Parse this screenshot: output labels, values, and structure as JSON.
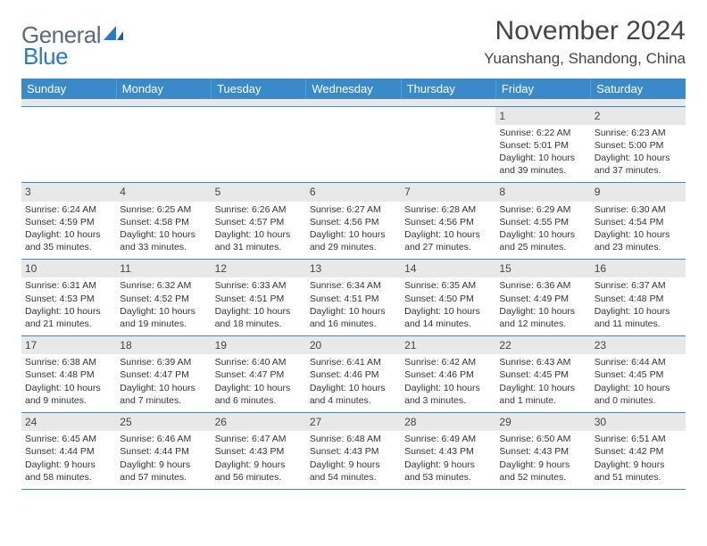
{
  "logo": {
    "text1": "General",
    "text2": "Blue"
  },
  "title": "November 2024",
  "location": "Yuanshang, Shandong, China",
  "day_headers": [
    "Sunday",
    "Monday",
    "Tuesday",
    "Wednesday",
    "Thursday",
    "Friday",
    "Saturday"
  ],
  "colors": {
    "header_bg": "#3a89c9",
    "header_text": "#ffffff",
    "logo_gray": "#5a6a78",
    "logo_blue": "#2a7bbf",
    "grid_line": "#3a89c9",
    "shade": "#e8e8e8"
  },
  "weeks": [
    [
      {
        "n": "",
        "sr": "",
        "ss": "",
        "d1": "",
        "d2": ""
      },
      {
        "n": "",
        "sr": "",
        "ss": "",
        "d1": "",
        "d2": ""
      },
      {
        "n": "",
        "sr": "",
        "ss": "",
        "d1": "",
        "d2": ""
      },
      {
        "n": "",
        "sr": "",
        "ss": "",
        "d1": "",
        "d2": ""
      },
      {
        "n": "",
        "sr": "",
        "ss": "",
        "d1": "",
        "d2": ""
      },
      {
        "n": "1",
        "sr": "Sunrise: 6:22 AM",
        "ss": "Sunset: 5:01 PM",
        "d1": "Daylight: 10 hours",
        "d2": "and 39 minutes."
      },
      {
        "n": "2",
        "sr": "Sunrise: 6:23 AM",
        "ss": "Sunset: 5:00 PM",
        "d1": "Daylight: 10 hours",
        "d2": "and 37 minutes."
      }
    ],
    [
      {
        "n": "3",
        "sr": "Sunrise: 6:24 AM",
        "ss": "Sunset: 4:59 PM",
        "d1": "Daylight: 10 hours",
        "d2": "and 35 minutes."
      },
      {
        "n": "4",
        "sr": "Sunrise: 6:25 AM",
        "ss": "Sunset: 4:58 PM",
        "d1": "Daylight: 10 hours",
        "d2": "and 33 minutes."
      },
      {
        "n": "5",
        "sr": "Sunrise: 6:26 AM",
        "ss": "Sunset: 4:57 PM",
        "d1": "Daylight: 10 hours",
        "d2": "and 31 minutes."
      },
      {
        "n": "6",
        "sr": "Sunrise: 6:27 AM",
        "ss": "Sunset: 4:56 PM",
        "d1": "Daylight: 10 hours",
        "d2": "and 29 minutes."
      },
      {
        "n": "7",
        "sr": "Sunrise: 6:28 AM",
        "ss": "Sunset: 4:56 PM",
        "d1": "Daylight: 10 hours",
        "d2": "and 27 minutes."
      },
      {
        "n": "8",
        "sr": "Sunrise: 6:29 AM",
        "ss": "Sunset: 4:55 PM",
        "d1": "Daylight: 10 hours",
        "d2": "and 25 minutes."
      },
      {
        "n": "9",
        "sr": "Sunrise: 6:30 AM",
        "ss": "Sunset: 4:54 PM",
        "d1": "Daylight: 10 hours",
        "d2": "and 23 minutes."
      }
    ],
    [
      {
        "n": "10",
        "sr": "Sunrise: 6:31 AM",
        "ss": "Sunset: 4:53 PM",
        "d1": "Daylight: 10 hours",
        "d2": "and 21 minutes."
      },
      {
        "n": "11",
        "sr": "Sunrise: 6:32 AM",
        "ss": "Sunset: 4:52 PM",
        "d1": "Daylight: 10 hours",
        "d2": "and 19 minutes."
      },
      {
        "n": "12",
        "sr": "Sunrise: 6:33 AM",
        "ss": "Sunset: 4:51 PM",
        "d1": "Daylight: 10 hours",
        "d2": "and 18 minutes."
      },
      {
        "n": "13",
        "sr": "Sunrise: 6:34 AM",
        "ss": "Sunset: 4:51 PM",
        "d1": "Daylight: 10 hours",
        "d2": "and 16 minutes."
      },
      {
        "n": "14",
        "sr": "Sunrise: 6:35 AM",
        "ss": "Sunset: 4:50 PM",
        "d1": "Daylight: 10 hours",
        "d2": "and 14 minutes."
      },
      {
        "n": "15",
        "sr": "Sunrise: 6:36 AM",
        "ss": "Sunset: 4:49 PM",
        "d1": "Daylight: 10 hours",
        "d2": "and 12 minutes."
      },
      {
        "n": "16",
        "sr": "Sunrise: 6:37 AM",
        "ss": "Sunset: 4:48 PM",
        "d1": "Daylight: 10 hours",
        "d2": "and 11 minutes."
      }
    ],
    [
      {
        "n": "17",
        "sr": "Sunrise: 6:38 AM",
        "ss": "Sunset: 4:48 PM",
        "d1": "Daylight: 10 hours",
        "d2": "and 9 minutes."
      },
      {
        "n": "18",
        "sr": "Sunrise: 6:39 AM",
        "ss": "Sunset: 4:47 PM",
        "d1": "Daylight: 10 hours",
        "d2": "and 7 minutes."
      },
      {
        "n": "19",
        "sr": "Sunrise: 6:40 AM",
        "ss": "Sunset: 4:47 PM",
        "d1": "Daylight: 10 hours",
        "d2": "and 6 minutes."
      },
      {
        "n": "20",
        "sr": "Sunrise: 6:41 AM",
        "ss": "Sunset: 4:46 PM",
        "d1": "Daylight: 10 hours",
        "d2": "and 4 minutes."
      },
      {
        "n": "21",
        "sr": "Sunrise: 6:42 AM",
        "ss": "Sunset: 4:46 PM",
        "d1": "Daylight: 10 hours",
        "d2": "and 3 minutes."
      },
      {
        "n": "22",
        "sr": "Sunrise: 6:43 AM",
        "ss": "Sunset: 4:45 PM",
        "d1": "Daylight: 10 hours",
        "d2": "and 1 minute."
      },
      {
        "n": "23",
        "sr": "Sunrise: 6:44 AM",
        "ss": "Sunset: 4:45 PM",
        "d1": "Daylight: 10 hours",
        "d2": "and 0 minutes."
      }
    ],
    [
      {
        "n": "24",
        "sr": "Sunrise: 6:45 AM",
        "ss": "Sunset: 4:44 PM",
        "d1": "Daylight: 9 hours",
        "d2": "and 58 minutes."
      },
      {
        "n": "25",
        "sr": "Sunrise: 6:46 AM",
        "ss": "Sunset: 4:44 PM",
        "d1": "Daylight: 9 hours",
        "d2": "and 57 minutes."
      },
      {
        "n": "26",
        "sr": "Sunrise: 6:47 AM",
        "ss": "Sunset: 4:43 PM",
        "d1": "Daylight: 9 hours",
        "d2": "and 56 minutes."
      },
      {
        "n": "27",
        "sr": "Sunrise: 6:48 AM",
        "ss": "Sunset: 4:43 PM",
        "d1": "Daylight: 9 hours",
        "d2": "and 54 minutes."
      },
      {
        "n": "28",
        "sr": "Sunrise: 6:49 AM",
        "ss": "Sunset: 4:43 PM",
        "d1": "Daylight: 9 hours",
        "d2": "and 53 minutes."
      },
      {
        "n": "29",
        "sr": "Sunrise: 6:50 AM",
        "ss": "Sunset: 4:43 PM",
        "d1": "Daylight: 9 hours",
        "d2": "and 52 minutes."
      },
      {
        "n": "30",
        "sr": "Sunrise: 6:51 AM",
        "ss": "Sunset: 4:42 PM",
        "d1": "Daylight: 9 hours",
        "d2": "and 51 minutes."
      }
    ]
  ]
}
